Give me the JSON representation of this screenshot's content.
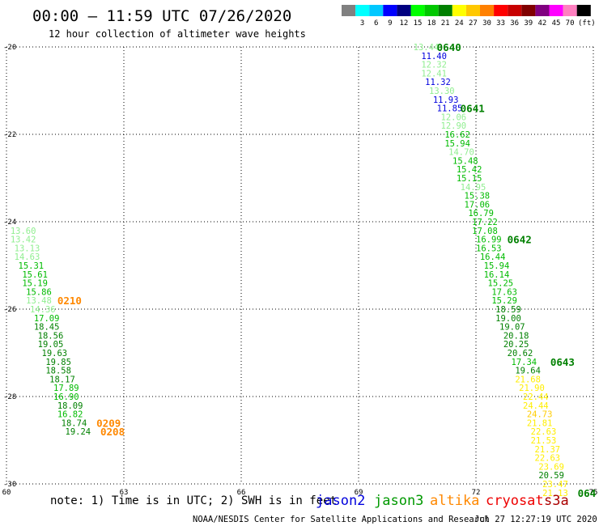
{
  "header": {
    "title": "00:00 — 11:59 UTC 07/26/2020",
    "subtitle": "12 hour collection of altimeter wave heights"
  },
  "legend": {
    "swatches": [
      {
        "color": "#808080",
        "label": ""
      },
      {
        "color": "#00ffff",
        "label": "3"
      },
      {
        "color": "#00c8ff",
        "label": "6"
      },
      {
        "color": "#0000ff",
        "label": "9"
      },
      {
        "color": "#000080",
        "label": "12"
      },
      {
        "color": "#00ff00",
        "label": "15"
      },
      {
        "color": "#00c800",
        "label": "18"
      },
      {
        "color": "#008000",
        "label": "21"
      },
      {
        "color": "#ffff00",
        "label": "24"
      },
      {
        "color": "#ffc800",
        "label": "27"
      },
      {
        "color": "#ff8000",
        "label": "30"
      },
      {
        "color": "#ff0000",
        "label": "33"
      },
      {
        "color": "#c80000",
        "label": "36"
      },
      {
        "color": "#800000",
        "label": "39"
      },
      {
        "color": "#800080",
        "label": "42"
      },
      {
        "color": "#ff00ff",
        "label": "45"
      },
      {
        "color": "#ff80c0",
        "label": "70"
      },
      {
        "color": "#000000",
        "label": ""
      }
    ],
    "unit": "(ft)"
  },
  "footer": {
    "note": "note: 1) Time is in UTC; 2) SWH is in feet",
    "satellites": [
      {
        "name": "jason2",
        "color": "#0000dd"
      },
      {
        "name": "jason3",
        "color": "#009900"
      },
      {
        "name": "altika",
        "color": "#ff8800"
      },
      {
        "name": "cryosat",
        "color": "#ee0000"
      },
      {
        "name": "s3a",
        "color": "#aa0000"
      }
    ],
    "credit": "NOAA/NESDIS Center for Satellite Applications and Research",
    "timestamp": "Jul 27 12:27:19 UTC 2020"
  },
  "chart_data": {
    "type": "scatter",
    "x_ticks": [
      "60",
      "63",
      "66",
      "69",
      "72",
      "75"
    ],
    "y_ticks": [
      "-20",
      "-22",
      "-24",
      "-26",
      "-28",
      "-30"
    ],
    "xlim": [
      60,
      75
    ],
    "ylim": [
      -30,
      -20
    ],
    "grid": true,
    "points": [
      {
        "x": 70.4,
        "y": -20.0,
        "v": "13.44",
        "color": "#90ee90"
      },
      {
        "x": 70.6,
        "y": -20.2,
        "v": "11.40",
        "color": "#0000dd"
      },
      {
        "x": 70.6,
        "y": -20.4,
        "v": "12.32",
        "color": "#90ee90"
      },
      {
        "x": 70.6,
        "y": -20.6,
        "v": "12.41",
        "color": "#90ee90"
      },
      {
        "x": 70.7,
        "y": -20.8,
        "v": "11.32",
        "color": "#0000dd"
      },
      {
        "x": 70.8,
        "y": -21.0,
        "v": "13.30",
        "color": "#90ee90"
      },
      {
        "x": 70.9,
        "y": -21.2,
        "v": "11.93",
        "color": "#0000dd"
      },
      {
        "x": 71.0,
        "y": -21.4,
        "v": "11.85",
        "color": "#0000dd"
      },
      {
        "x": 71.1,
        "y": -21.6,
        "v": "12.06",
        "color": "#90ee90"
      },
      {
        "x": 71.1,
        "y": -21.8,
        "v": "12.90",
        "color": "#90ee90"
      },
      {
        "x": 71.2,
        "y": -22.0,
        "v": "16.62",
        "color": "#00bb00"
      },
      {
        "x": 71.2,
        "y": -22.2,
        "v": "15.94",
        "color": "#00bb00"
      },
      {
        "x": 71.3,
        "y": -22.4,
        "v": "14.70",
        "color": "#90ee90"
      },
      {
        "x": 71.4,
        "y": -22.6,
        "v": "15.48",
        "color": "#00bb00"
      },
      {
        "x": 71.5,
        "y": -22.8,
        "v": "15.42",
        "color": "#00bb00"
      },
      {
        "x": 71.5,
        "y": -23.0,
        "v": "15.15",
        "color": "#00bb00"
      },
      {
        "x": 71.6,
        "y": -23.2,
        "v": "14.95",
        "color": "#90ee90"
      },
      {
        "x": 71.7,
        "y": -23.4,
        "v": "15.38",
        "color": "#00bb00"
      },
      {
        "x": 71.7,
        "y": -23.6,
        "v": "17.06",
        "color": "#00bb00"
      },
      {
        "x": 71.8,
        "y": -23.8,
        "v": "16.79",
        "color": "#00bb00"
      },
      {
        "x": 71.9,
        "y": -24.0,
        "v": "17.22",
        "color": "#00bb00"
      },
      {
        "x": 71.9,
        "y": -24.2,
        "v": "17.08",
        "color": "#00bb00"
      },
      {
        "x": 72.0,
        "y": -24.4,
        "v": "16.99",
        "color": "#00bb00"
      },
      {
        "x": 72.0,
        "y": -24.6,
        "v": "16.53",
        "color": "#00bb00"
      },
      {
        "x": 72.1,
        "y": -24.8,
        "v": "16.44",
        "color": "#00bb00"
      },
      {
        "x": 72.2,
        "y": -25.0,
        "v": "15.94",
        "color": "#00bb00"
      },
      {
        "x": 72.2,
        "y": -25.2,
        "v": "16.14",
        "color": "#00bb00"
      },
      {
        "x": 72.3,
        "y": -25.4,
        "v": "15.25",
        "color": "#00bb00"
      },
      {
        "x": 72.4,
        "y": -25.6,
        "v": "17.63",
        "color": "#00bb00"
      },
      {
        "x": 72.4,
        "y": -25.8,
        "v": "15.29",
        "color": "#00bb00"
      },
      {
        "x": 72.5,
        "y": -26.0,
        "v": "18.59",
        "color": "#008000"
      },
      {
        "x": 72.5,
        "y": -26.2,
        "v": "19.00",
        "color": "#008000"
      },
      {
        "x": 72.6,
        "y": -26.4,
        "v": "19.07",
        "color": "#008000"
      },
      {
        "x": 72.7,
        "y": -26.6,
        "v": "20.18",
        "color": "#008000"
      },
      {
        "x": 72.7,
        "y": -26.8,
        "v": "20.25",
        "color": "#008000"
      },
      {
        "x": 72.8,
        "y": -27.0,
        "v": "20.62",
        "color": "#008000"
      },
      {
        "x": 72.9,
        "y": -27.2,
        "v": "17.34",
        "color": "#00bb00"
      },
      {
        "x": 73.0,
        "y": -27.4,
        "v": "19.64",
        "color": "#008000"
      },
      {
        "x": 73.0,
        "y": -27.6,
        "v": "21.68",
        "color": "#ffee00"
      },
      {
        "x": 73.1,
        "y": -27.8,
        "v": "21.90",
        "color": "#ffee00"
      },
      {
        "x": 73.2,
        "y": -28.0,
        "v": "22.44",
        "color": "#ffee00"
      },
      {
        "x": 73.2,
        "y": -28.2,
        "v": "24.44",
        "color": "#ffee00"
      },
      {
        "x": 73.3,
        "y": -28.4,
        "v": "24.73",
        "color": "#ffcc00"
      },
      {
        "x": 73.3,
        "y": -28.6,
        "v": "21.81",
        "color": "#ffee00"
      },
      {
        "x": 73.4,
        "y": -28.8,
        "v": "22.63",
        "color": "#ffee00"
      },
      {
        "x": 73.4,
        "y": -29.0,
        "v": "21.53",
        "color": "#ffee00"
      },
      {
        "x": 73.5,
        "y": -29.2,
        "v": "21.37",
        "color": "#ffee00"
      },
      {
        "x": 73.5,
        "y": -29.4,
        "v": "22.63",
        "color": "#ffee00"
      },
      {
        "x": 73.6,
        "y": -29.6,
        "v": "23.69",
        "color": "#ffee00"
      },
      {
        "x": 73.6,
        "y": -29.8,
        "v": "20.59",
        "color": "#008000"
      },
      {
        "x": 73.7,
        "y": -30.0,
        "v": "23.47",
        "color": "#ffee00"
      },
      {
        "x": 73.7,
        "y": -30.2,
        "v": "21.13",
        "color": "#ffee00"
      },
      {
        "x": 60.1,
        "y": -24.2,
        "v": "13.60",
        "color": "#90ee90"
      },
      {
        "x": 60.1,
        "y": -24.4,
        "v": "13.42",
        "color": "#90ee90"
      },
      {
        "x": 60.2,
        "y": -24.6,
        "v": "13.13",
        "color": "#90ee90"
      },
      {
        "x": 60.2,
        "y": -24.8,
        "v": "14.63",
        "color": "#90ee90"
      },
      {
        "x": 60.3,
        "y": -25.0,
        "v": "15.31",
        "color": "#00bb00"
      },
      {
        "x": 60.4,
        "y": -25.2,
        "v": "15.61",
        "color": "#00bb00"
      },
      {
        "x": 60.4,
        "y": -25.4,
        "v": "15.19",
        "color": "#00bb00"
      },
      {
        "x": 60.5,
        "y": -25.6,
        "v": "15.86",
        "color": "#00bb00"
      },
      {
        "x": 60.5,
        "y": -25.8,
        "v": "13.48",
        "color": "#90ee90"
      },
      {
        "x": 60.6,
        "y": -26.0,
        "v": "14.36",
        "color": "#90ee90"
      },
      {
        "x": 60.7,
        "y": -26.2,
        "v": "17.09",
        "color": "#00bb00"
      },
      {
        "x": 60.7,
        "y": -26.4,
        "v": "18.45",
        "color": "#008000"
      },
      {
        "x": 60.8,
        "y": -26.6,
        "v": "18.56",
        "color": "#008000"
      },
      {
        "x": 60.8,
        "y": -26.8,
        "v": "19.05",
        "color": "#008000"
      },
      {
        "x": 60.9,
        "y": -27.0,
        "v": "19.63",
        "color": "#008000"
      },
      {
        "x": 61.0,
        "y": -27.2,
        "v": "19.85",
        "color": "#008000"
      },
      {
        "x": 61.0,
        "y": -27.4,
        "v": "18.58",
        "color": "#008000"
      },
      {
        "x": 61.1,
        "y": -27.6,
        "v": "18.17",
        "color": "#008000"
      },
      {
        "x": 61.2,
        "y": -27.8,
        "v": "17.89",
        "color": "#00bb00"
      },
      {
        "x": 61.2,
        "y": -28.0,
        "v": "16.90",
        "color": "#00bb00"
      },
      {
        "x": 61.3,
        "y": -28.2,
        "v": "18.09",
        "color": "#008000"
      },
      {
        "x": 61.3,
        "y": -28.4,
        "v": "16.82",
        "color": "#00bb00"
      },
      {
        "x": 61.4,
        "y": -28.6,
        "v": "18.74",
        "color": "#008000"
      },
      {
        "x": 61.5,
        "y": -28.8,
        "v": "19.24",
        "color": "#008000"
      }
    ],
    "pass_labels": [
      {
        "text": "0640",
        "x": 71.0,
        "y": -20.0,
        "color": "#008000"
      },
      {
        "text": "0641",
        "x": 71.6,
        "y": -21.4,
        "color": "#008000"
      },
      {
        "text": "0642",
        "x": 72.8,
        "y": -24.4,
        "color": "#008000"
      },
      {
        "text": "0643",
        "x": 73.9,
        "y": -27.2,
        "color": "#008000"
      },
      {
        "text": "064",
        "x": 74.6,
        "y": -30.2,
        "color": "#008000"
      },
      {
        "text": "0210",
        "x": 61.3,
        "y": -25.8,
        "color": "#ff8800"
      },
      {
        "text": "0209",
        "x": 62.3,
        "y": -28.6,
        "color": "#ff8800"
      },
      {
        "text": "0208",
        "x": 62.4,
        "y": -28.8,
        "color": "#ff8800"
      }
    ]
  }
}
